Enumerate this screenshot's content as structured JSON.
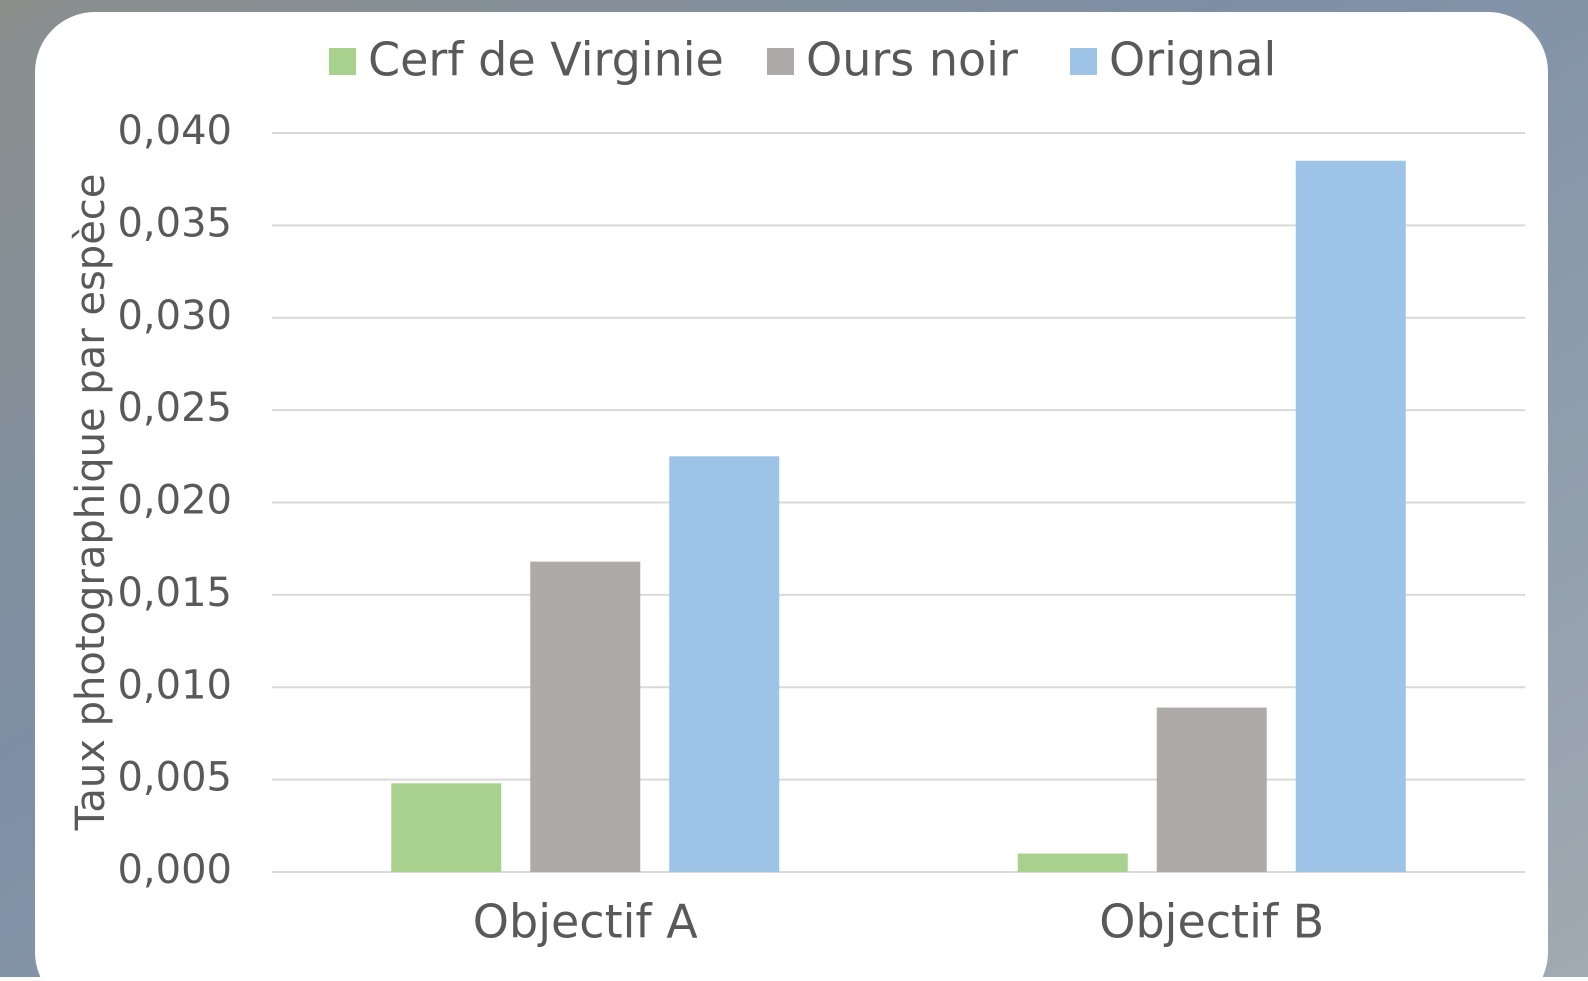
{
  "chart_data": {
    "type": "bar",
    "y_label": "Taux photographique par espèce",
    "categories": [
      "Objectif A",
      "Objectif B"
    ],
    "series": [
      {
        "name": "Cerf de Virginie",
        "color": "#a9d18e",
        "values": [
          0.0048,
          0.001
        ]
      },
      {
        "name": "Ours noir",
        "color": "#aeaaaa",
        "values": [
          0.0168,
          0.0089
        ]
      },
      {
        "name": "Orignal",
        "color": "#9dc3e6",
        "values": [
          0.0225,
          0.0385
        ]
      }
    ],
    "ylim": [
      0,
      0.04
    ],
    "yticks": [
      {
        "value": 0,
        "label": "0,000"
      },
      {
        "value": 0.005,
        "label": "0,005"
      },
      {
        "value": 0.01,
        "label": "0,010"
      },
      {
        "value": 0.015,
        "label": "0,015"
      },
      {
        "value": 0.02,
        "label": "0,020"
      },
      {
        "value": 0.025,
        "label": "0,025"
      },
      {
        "value": 0.03,
        "label": "0,030"
      },
      {
        "value": 0.035,
        "label": "0,035"
      },
      {
        "value": 0.04,
        "label": "0,040"
      }
    ],
    "grid": true,
    "legend": "top"
  }
}
